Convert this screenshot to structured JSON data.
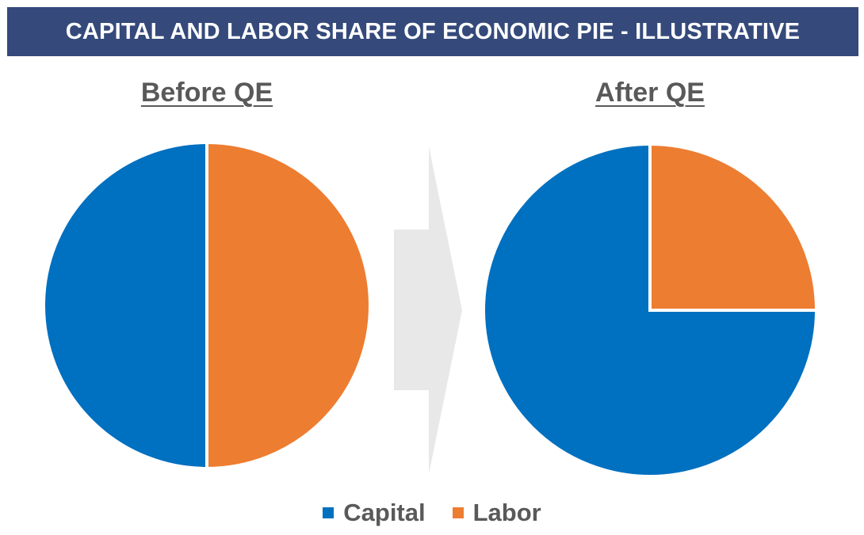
{
  "title": "CAPITAL AND LABOR SHARE OF ECONOMIC PIE - ILLUSTRATIVE",
  "colors": {
    "banner": "#354a7b",
    "capital": "#0070c0",
    "labor": "#ed7d31",
    "arrow": "#e8e8e8",
    "text": "#595959"
  },
  "arrow_icon": "right-arrow-icon",
  "chart_data": [
    {
      "type": "pie",
      "title": "Before QE",
      "series": [
        {
          "name": "Capital",
          "value": 50
        },
        {
          "name": "Labor",
          "value": 50
        }
      ]
    },
    {
      "type": "pie",
      "title": "After QE",
      "series": [
        {
          "name": "Capital",
          "value": 75
        },
        {
          "name": "Labor",
          "value": 25
        }
      ]
    }
  ],
  "legend": [
    {
      "label": "Capital",
      "color": "#0070c0"
    },
    {
      "label": "Labor",
      "color": "#ed7d31"
    }
  ],
  "legend_placement": "bottom"
}
